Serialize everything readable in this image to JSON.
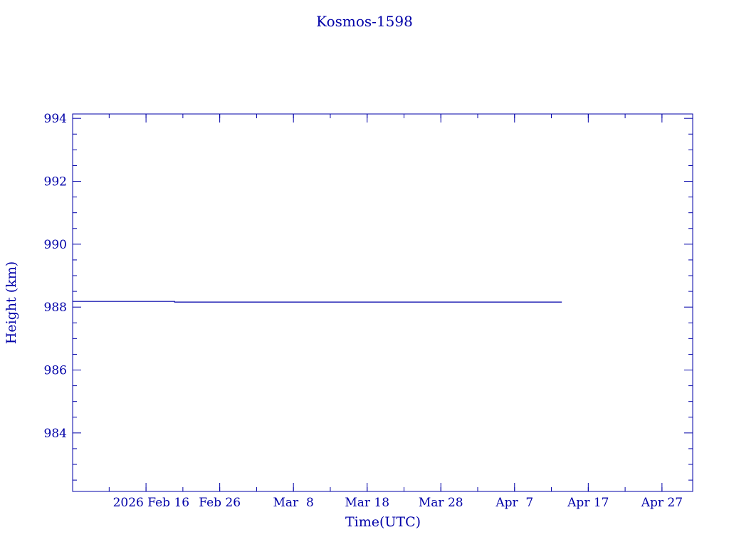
{
  "chart_data": {
    "type": "line",
    "title": "Kosmos-1598",
    "xlabel": "Time(UTC)",
    "ylabel": "Height (km)",
    "xlim": [
      "2026-02-06T01:00:00Z",
      "2026-05-01T04:00:00Z"
    ],
    "ylim": [
      982.14,
      994.14
    ],
    "x_ticks": [
      {
        "date": "2026-02-16T00:00:00Z",
        "label": "2026 Feb 16"
      },
      {
        "date": "2026-02-26T00:00:00Z",
        "label": "Feb 26"
      },
      {
        "date": "2026-03-08T00:00:00Z",
        "label": "Mar  8"
      },
      {
        "date": "2026-03-18T00:00:00Z",
        "label": "Mar 18"
      },
      {
        "date": "2026-03-28T00:00:00Z",
        "label": "Mar 28"
      },
      {
        "date": "2026-04-07T00:00:00Z",
        "label": "Apr  7"
      },
      {
        "date": "2026-04-17T00:00:00Z",
        "label": "Apr 17"
      },
      {
        "date": "2026-04-27T00:00:00Z",
        "label": "Apr 27"
      }
    ],
    "y_ticks": [
      984,
      986,
      988,
      990,
      992,
      994
    ],
    "grid": false,
    "color": "#0000a8",
    "series": [
      {
        "points": [
          [
            "2026-02-06T01:00:00Z",
            988.18
          ],
          [
            "2026-02-19T21:00:00Z",
            988.18
          ],
          [
            "2026-02-19T21:00:00Z",
            988.16
          ],
          [
            "2026-04-13T10:00:00Z",
            988.16
          ]
        ]
      }
    ]
  }
}
